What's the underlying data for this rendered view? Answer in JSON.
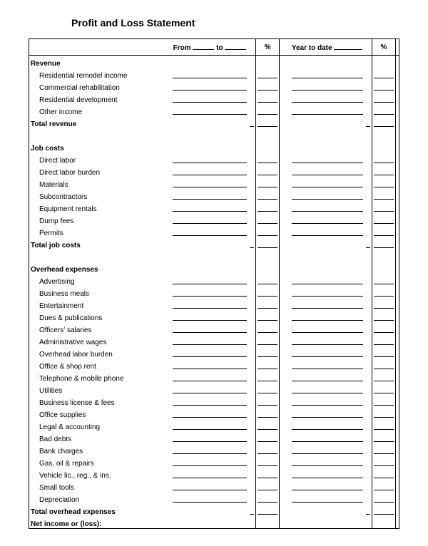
{
  "title": "Profit and Loss Statement",
  "header": {
    "from_label": "From",
    "to_label": "to",
    "pct_label": "%",
    "ytd_label": "Year to date"
  },
  "sections": [
    {
      "name": "Revenue",
      "items": [
        "Residential remodel income",
        "Commercial rehabilitation",
        "Residential development",
        "Other income"
      ],
      "total_label": "Total revenue"
    },
    {
      "name": "Job costs",
      "items": [
        "Direct labor",
        "Direct labor burden",
        "Materials",
        "Subcontractors",
        "Equipment rentals",
        "Dump fees",
        "Permits"
      ],
      "total_label": "Total job costs"
    },
    {
      "name": "Overhead expenses",
      "items": [
        "Advertising",
        "Business meals",
        "Entertainment",
        "Dues & publications",
        "Officers' salaries",
        "Administrative wages",
        "Overhead labor burden",
        "Office & shop rent",
        "Telephone & mobile phone",
        "Utilities",
        "Business license & fees",
        "Office supplies",
        "Legal & accounting",
        "Bad debts",
        "Bank charges",
        "Gas, oil & repairs",
        "Vehicle lic., reg., & ins.",
        "Small tools",
        "Depreciation"
      ],
      "total_label": "Total overhead expenses"
    }
  ],
  "net_label": "Net income or (loss):"
}
